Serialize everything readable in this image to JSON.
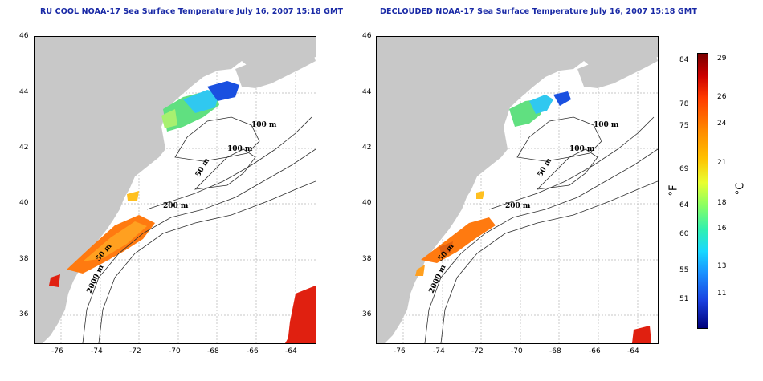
{
  "titles": {
    "left": "RU COOL NOAA-17 Sea Surface Temperature July 16, 2007 15:18 GMT",
    "right": "DECLOUDED NOAA-17 Sea Surface Temperature July 16, 2007 15:18 GMT"
  },
  "axes": {
    "lat_ticks": [
      "46",
      "44",
      "42",
      "40",
      "38",
      "36"
    ],
    "lon_ticks": [
      "-76",
      "-74",
      "-72",
      "-70",
      "-68",
      "-66",
      "-64"
    ]
  },
  "contour_labels": [
    "100 m",
    "100 m",
    "50 m",
    "200 m",
    "50 m",
    "2000 m"
  ],
  "colorbar": {
    "fahrenheit_label": "°F",
    "celsius_label": "°C",
    "fahrenheit_ticks": [
      "84",
      "78",
      "75",
      "69",
      "64",
      "60",
      "55",
      "51"
    ],
    "celsius_ticks": [
      "29",
      "26",
      "24",
      "21",
      "18",
      "16",
      "13",
      "11"
    ]
  },
  "colors": {
    "title": "#1a2aa6",
    "land": "#c8c8c8",
    "grid": "#b0b0b0"
  }
}
